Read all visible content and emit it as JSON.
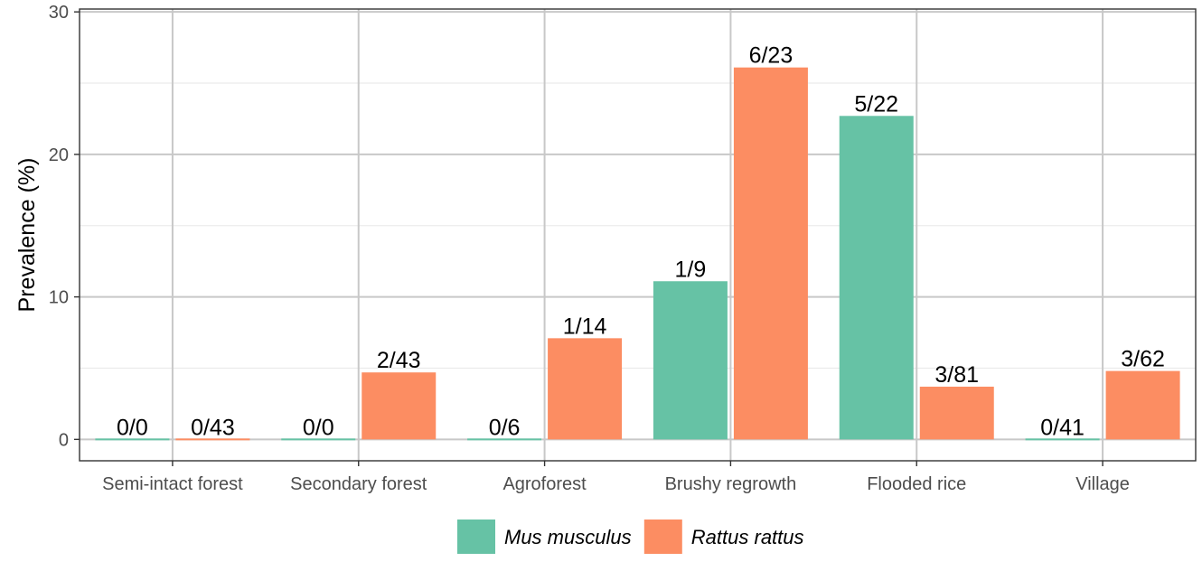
{
  "chart_data": {
    "type": "bar",
    "title": "",
    "xlabel": "",
    "ylabel": "Prevalence (%)",
    "ylim": [
      -1.5,
      30.2
    ],
    "yticks": [
      0,
      10,
      20,
      30
    ],
    "grid": true,
    "legend_position": "bottom",
    "categories": [
      "Semi-intact forest",
      "Secondary forest",
      "Agroforest",
      "Brushy regrowth",
      "Flooded rice",
      "Village"
    ],
    "series": [
      {
        "name": "Mus musculus",
        "color": "#66c2a5",
        "values": [
          0,
          0,
          0,
          11.1,
          22.7,
          0
        ],
        "labels": [
          "0/0",
          "0/0",
          "0/6",
          "1/9",
          "5/22",
          "0/41"
        ]
      },
      {
        "name": "Rattus rattus",
        "color": "#fc8d62",
        "values": [
          0,
          4.7,
          7.1,
          26.1,
          3.7,
          4.8
        ],
        "labels": [
          "0/43",
          "2/43",
          "1/14",
          "6/23",
          "3/81",
          "3/62"
        ]
      }
    ]
  }
}
